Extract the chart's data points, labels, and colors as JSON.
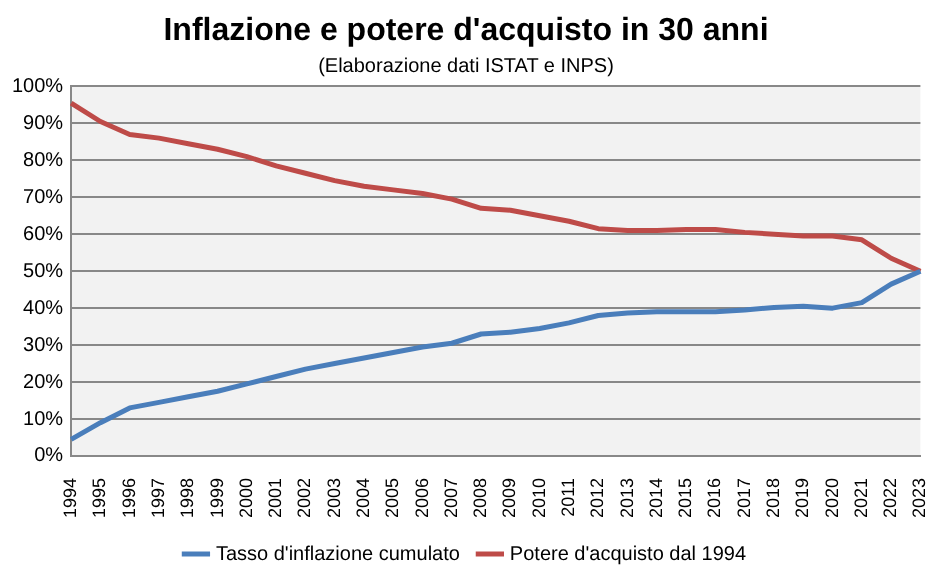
{
  "chart_data": {
    "type": "line",
    "title": "Inflazione e potere d'acquisto in 30 anni",
    "subtitle": "(Elaborazione dati ISTAT e INPS)",
    "categories": [
      "1994",
      "1995",
      "1996",
      "1997",
      "1998",
      "1999",
      "2000",
      "2001",
      "2002",
      "2003",
      "2004",
      "2005",
      "2006",
      "2007",
      "2008",
      "2009",
      "2010",
      "2011",
      "2012",
      "2013",
      "2014",
      "2015",
      "2016",
      "2017",
      "2018",
      "2019",
      "2020",
      "2021",
      "2022",
      "2023"
    ],
    "series": [
      {
        "name": "Tasso d'inflazione cumulato",
        "color": "#4a7ebb",
        "values": [
          4.5,
          9,
          13,
          14.5,
          16,
          17.5,
          19.5,
          21.5,
          23.5,
          25,
          26.5,
          28,
          29.5,
          30.5,
          33,
          33.5,
          34.5,
          36,
          38,
          38.7,
          39,
          39,
          39,
          39.5,
          40.2,
          40.5,
          40,
          41.5,
          46.5,
          50
        ]
      },
      {
        "name": "Potere d'acquisto dal 1994",
        "color": "#be4b48",
        "values": [
          95.5,
          90.5,
          87,
          86,
          84.5,
          83,
          81,
          78.5,
          76.5,
          74.5,
          73,
          72,
          71,
          69.5,
          67,
          66.5,
          65,
          63.5,
          61.5,
          61,
          61,
          61.3,
          61.3,
          60.5,
          60,
          59.5,
          59.5,
          58.5,
          53.5,
          50
        ]
      }
    ],
    "ylim": [
      0,
      100
    ],
    "yticks": [
      {
        "value": 0,
        "label": "0%"
      },
      {
        "value": 10,
        "label": "10%"
      },
      {
        "value": 20,
        "label": "20%"
      },
      {
        "value": 30,
        "label": "30%"
      },
      {
        "value": 40,
        "label": "40%"
      },
      {
        "value": 50,
        "label": "50%"
      },
      {
        "value": 60,
        "label": "60%"
      },
      {
        "value": 70,
        "label": "70%"
      },
      {
        "value": 80,
        "label": "80%"
      },
      {
        "value": 90,
        "label": "90%"
      },
      {
        "value": 100,
        "label": "100%"
      }
    ],
    "grid": "y",
    "legend": "bottom",
    "marker": "none",
    "line_style": "solid"
  }
}
